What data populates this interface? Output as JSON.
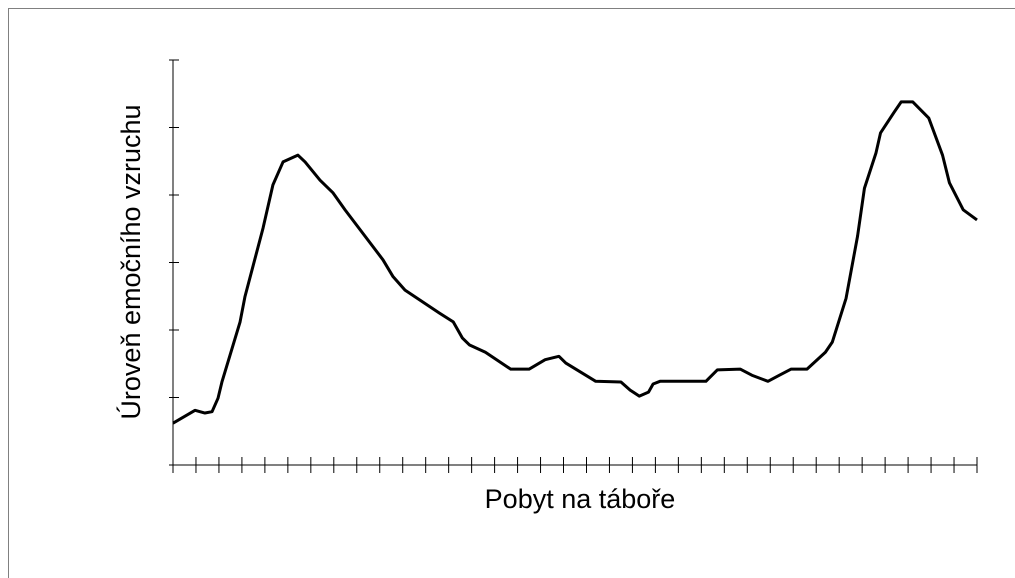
{
  "chart_data": {
    "type": "line",
    "x_label": "Pobyt na táboře",
    "y_label": "Úroveň emočního vzruchu",
    "xlim": [
      0,
      35
    ],
    "ylim": [
      0,
      6
    ],
    "xticks": [
      0,
      1,
      2,
      3,
      4,
      5,
      6,
      7,
      8,
      9,
      10,
      11,
      12,
      13,
      14,
      15,
      16,
      17,
      18,
      19,
      20,
      21,
      22,
      23,
      24,
      25,
      26,
      27,
      28,
      29,
      30,
      31,
      32,
      33,
      34,
      35
    ],
    "yticks": [
      0,
      1,
      2,
      3,
      4,
      5,
      6
    ],
    "series": [
      {
        "color": "#000000",
        "x": [
          0,
          0.96,
          1.39,
          1.7,
          1.96,
          2.13,
          2.92,
          3.13,
          3.92,
          4.35,
          4.79,
          5.44,
          5.75,
          6.4,
          6.97,
          7.49,
          9.14,
          9.58,
          10.1,
          11.6,
          12.2,
          12.6,
          12.9,
          13.6,
          14.7,
          15.5,
          16.2,
          16.8,
          17.1,
          18.4,
          19.5,
          19.9,
          20.3,
          20.7,
          20.9,
          21.2,
          23.2,
          23.7,
          24.7,
          25.2,
          25.9,
          26.4,
          26.9,
          27.6,
          28.4,
          28.7,
          29.3,
          29.8,
          30.1,
          30.6,
          30.8,
          31.4,
          31.7,
          32.2,
          32.9,
          33.5,
          33.8,
          34.4,
          35
        ],
        "values": [
          0.62,
          0.81,
          0.77,
          0.79,
          0.99,
          1.23,
          2.12,
          2.49,
          3.51,
          4.15,
          4.49,
          4.59,
          4.49,
          4.22,
          4.03,
          3.78,
          3.04,
          2.79,
          2.59,
          2.25,
          2.12,
          1.88,
          1.78,
          1.67,
          1.42,
          1.42,
          1.56,
          1.61,
          1.51,
          1.24,
          1.23,
          1.11,
          1.02,
          1.08,
          1.2,
          1.24,
          1.24,
          1.41,
          1.42,
          1.33,
          1.24,
          1.33,
          1.42,
          1.42,
          1.67,
          1.82,
          2.47,
          3.39,
          4.1,
          4.62,
          4.92,
          5.23,
          5.38,
          5.38,
          5.14,
          4.59,
          4.18,
          3.78,
          3.63
        ]
      }
    ]
  }
}
